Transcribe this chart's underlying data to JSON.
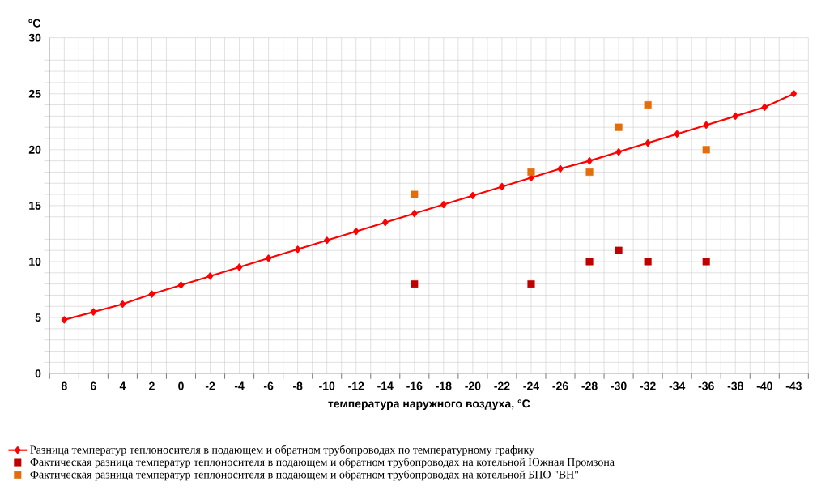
{
  "chart_data": {
    "type": "line",
    "ylabel": "°C",
    "xlabel": "температура наружного воздуха, °С",
    "categories": [
      "8",
      "6",
      "4",
      "2",
      "0",
      "-2",
      "-4",
      "-6",
      "-8",
      "-10",
      "-12",
      "-14",
      "-16",
      "-18",
      "-20",
      "-22",
      "-24",
      "-26",
      "-28",
      "-30",
      "-32",
      "-34",
      "-36",
      "-38",
      "-40",
      "-43"
    ],
    "series": [
      {
        "name": "Разница температур  теплоносителя в подающем и обратном трубопроводах по температурному  графику",
        "marker": "diamond",
        "color": "#ff0000",
        "values": [
          4.8,
          5.5,
          6.2,
          7.1,
          7.9,
          8.7,
          9.5,
          10.3,
          11.1,
          11.9,
          12.7,
          13.5,
          14.3,
          15.1,
          15.9,
          16.7,
          17.5,
          18.3,
          19.0,
          19.8,
          20.6,
          21.4,
          22.2,
          23.0,
          23.8,
          25.0
        ]
      },
      {
        "name": "Фактическая разница температур  теплоносителя в подающем и обратном трубопроводах на котельной Южная Промзона",
        "type": "scatter",
        "marker": "square",
        "color": "#c00000",
        "values": [
          null,
          null,
          null,
          null,
          null,
          null,
          null,
          null,
          null,
          null,
          null,
          null,
          8,
          null,
          null,
          null,
          8,
          null,
          10,
          11,
          10,
          null,
          10,
          null,
          null,
          null
        ]
      },
      {
        "name": "Фактическая разница температур  теплоносителя в подающем и обратном трубопроводах на котельной БПО \"ВН\"",
        "type": "scatter",
        "marker": "square",
        "color": "#e46c0a",
        "values": [
          null,
          null,
          null,
          null,
          null,
          null,
          null,
          null,
          null,
          null,
          null,
          null,
          16,
          null,
          null,
          null,
          18,
          null,
          18,
          22,
          24,
          null,
          20,
          null,
          null,
          null
        ]
      }
    ],
    "ylim": [
      0,
      30
    ],
    "yticks": [
      0,
      5,
      10,
      15,
      20,
      25,
      30
    ],
    "grid": true,
    "legend": "bottom"
  }
}
